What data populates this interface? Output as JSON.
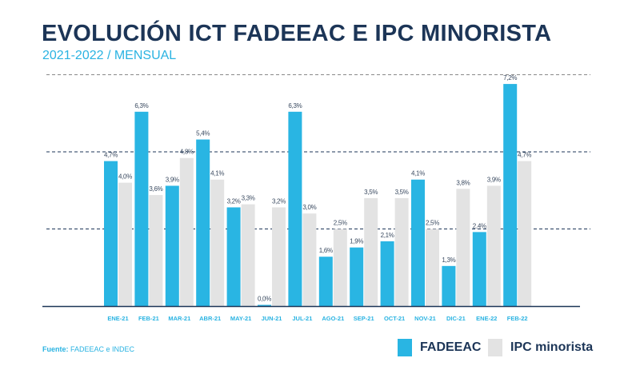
{
  "chart_data": {
    "type": "bar",
    "title": "EVOLUCIÓN ICT FADEEAC E IPC MINORISTA",
    "subtitle": "2021-2022 / MENSUAL",
    "categories": [
      "ENE-21",
      "FEB-21",
      "MAR-21",
      "ABR-21",
      "MAY-21",
      "JUN-21",
      "JUL-21",
      "AGO-21",
      "SEP-21",
      "OCT-21",
      "NOV-21",
      "DIC-21",
      "ENE-22",
      "FEB-22"
    ],
    "series": [
      {
        "name": "FADEEAC",
        "color": "#29b5e3",
        "values": [
          4.7,
          6.3,
          3.9,
          5.4,
          3.2,
          0.0,
          6.3,
          1.6,
          1.9,
          2.1,
          4.1,
          1.3,
          2.4,
          7.2
        ],
        "labels": [
          "4,7%",
          "6,3%",
          "3,9%",
          "5,4%",
          "3,2%",
          "0,0%",
          "6,3%",
          "1,6%",
          "1,9%",
          "2,1%",
          "4,1%",
          "1,3%",
          "2,4%",
          "7,2%"
        ]
      },
      {
        "name": "IPC minorista",
        "color": "#e3e3e3",
        "values": [
          4.0,
          3.6,
          4.8,
          4.1,
          3.3,
          3.2,
          3.0,
          2.5,
          3.5,
          3.5,
          2.5,
          3.8,
          3.9,
          4.7
        ],
        "labels": [
          "4,0%",
          "3,6%",
          "4,8%",
          "4,1%",
          "3,3%",
          "3,2%",
          "3,0%",
          "2,5%",
          "3,5%",
          "3,5%",
          "2,5%",
          "3,8%",
          "3,9%",
          "4,7%"
        ]
      }
    ],
    "ylim": [
      0,
      7.5
    ],
    "gridlines": [
      2.5,
      5,
      7.5
    ],
    "grid": true,
    "legend": "bottom-right",
    "xlabel": "",
    "ylabel": ""
  },
  "source": {
    "label": "Fuente:",
    "text": " FADEEAC e INDEC"
  }
}
